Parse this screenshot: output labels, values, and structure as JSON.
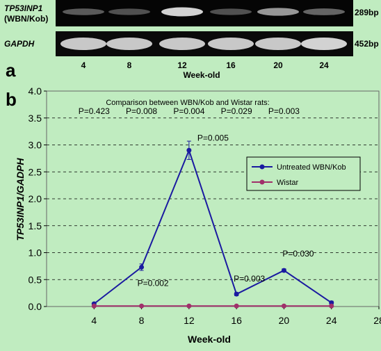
{
  "panel_a": {
    "panel_label": "a",
    "gene_label_line1": "TP53INP1",
    "gene_label_line2": "(WBN/Kob)",
    "control_label": "GAPDH",
    "gene_size": "289bp",
    "control_size": "452bp",
    "lanes": [
      "4",
      "8",
      "12",
      "16",
      "20",
      "24"
    ],
    "gene_band_intensity": [
      0.25,
      0.2,
      0.85,
      0.2,
      0.55,
      0.3
    ],
    "control_band_intensity": [
      0.8,
      0.8,
      0.8,
      0.8,
      0.8,
      0.85
    ],
    "xlabel": "Week-old"
  },
  "panel_b": {
    "panel_label": "b",
    "comparison_title": "Comparison between WBN/Kob and Wistar rats:",
    "comparison_pvalues": [
      "P=0.423",
      "P=0.008",
      "P=0.004",
      "P=0.029",
      "P=0.003"
    ]
  },
  "chart_data": {
    "type": "line",
    "xlabel": "Week-old",
    "ylabel": "TP53INP1/GADPH",
    "xlim": [
      0,
      28
    ],
    "ylim": [
      0,
      4.0
    ],
    "x_ticks": [
      "4",
      "8",
      "12",
      "16",
      "20",
      "24",
      "28"
    ],
    "y_ticks": [
      "0.0",
      "0.5",
      "1.0",
      "1.5",
      "2.0",
      "2.5",
      "3.0",
      "3.5",
      "4.0"
    ],
    "grid": true,
    "legend_position": "center-right",
    "series": [
      {
        "name": "Untreated WBN/Kob",
        "color": "#1a1aa0",
        "x": [
          4,
          8,
          12,
          16,
          20,
          24
        ],
        "y": [
          0.05,
          0.73,
          2.9,
          0.23,
          0.67,
          0.07
        ],
        "error": [
          0.02,
          0.06,
          0.17,
          0.03,
          0.03,
          0.03
        ]
      },
      {
        "name": "Wistar",
        "color": "#a0306a",
        "x": [
          4,
          8,
          12,
          16,
          20,
          24
        ],
        "y": [
          0.01,
          0.01,
          0.01,
          0.01,
          0.01,
          0.01
        ]
      }
    ],
    "annotations": [
      {
        "text": "P=0.005",
        "x": 12,
        "y": 2.9
      },
      {
        "text": "P=0.002",
        "x": 8,
        "y": 0.73
      },
      {
        "text": "P=0.003",
        "x": 16,
        "y": 0.23
      },
      {
        "text": "P=0.030",
        "x": 20,
        "y": 0.67
      }
    ]
  }
}
